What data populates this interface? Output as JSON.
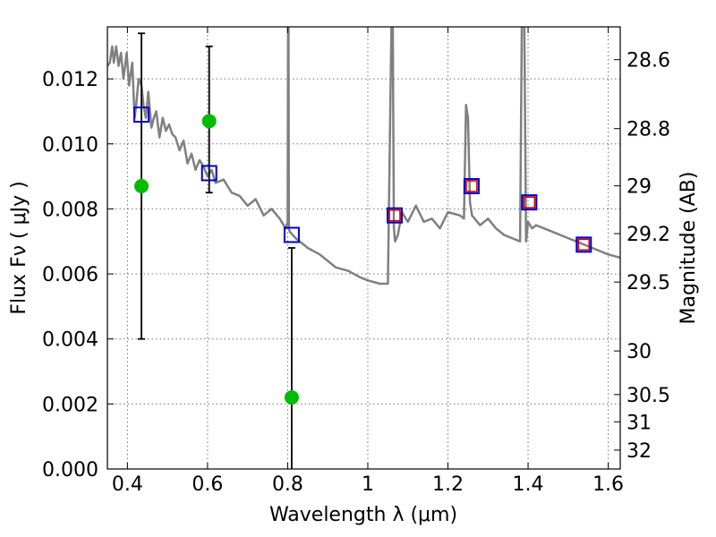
{
  "chart_data": {
    "type": "line",
    "xlabel": "Wavelength  λ (μm)",
    "ylabel": "Flux  Fν  ( μJy )",
    "right_ylabel": "Magnitude (AB)",
    "xlim": [
      0.35,
      1.63
    ],
    "ylim": [
      0.0,
      0.0136
    ],
    "grid": true,
    "x_ticks": [
      0.4,
      0.6,
      0.8,
      1.0,
      1.2,
      1.4,
      1.6
    ],
    "x_tick_labels": [
      "0.4",
      "0.6",
      "0.8",
      "1",
      "1.2",
      "1.4",
      "1.6"
    ],
    "y_ticks": [
      0.0,
      0.002,
      0.004,
      0.006,
      0.008,
      0.01,
      0.012
    ],
    "y_tick_labels": [
      "0.000",
      "0.002",
      "0.004",
      "0.006",
      "0.008",
      "0.010",
      "0.012"
    ],
    "right_ticks": [
      {
        "flux": 0.01259,
        "label": "28.6"
      },
      {
        "flux": 0.01047,
        "label": "28.8"
      },
      {
        "flux": 0.00871,
        "label": "29"
      },
      {
        "flux": 0.00724,
        "label": "29.2"
      },
      {
        "flux": 0.00575,
        "label": "29.5"
      },
      {
        "flux": 0.00363,
        "label": "30"
      },
      {
        "flux": 0.00229,
        "label": "30.5"
      },
      {
        "flux": 0.00145,
        "label": "31"
      },
      {
        "flux": 0.00058,
        "label": "32"
      }
    ],
    "series": [
      {
        "kind": "model_spectrum",
        "color": "#808080",
        "x": [
          0.35,
          0.356,
          0.362,
          0.366,
          0.372,
          0.378,
          0.384,
          0.39,
          0.398,
          0.404,
          0.412,
          0.418,
          0.422,
          0.428,
          0.435,
          0.44,
          0.446,
          0.452,
          0.46,
          0.466,
          0.472,
          0.48,
          0.488,
          0.496,
          0.504,
          0.512,
          0.52,
          0.53,
          0.54,
          0.55,
          0.56,
          0.57,
          0.58,
          0.59,
          0.6,
          0.61,
          0.62,
          0.64,
          0.66,
          0.68,
          0.7,
          0.72,
          0.74,
          0.76,
          0.78,
          0.795,
          0.8,
          0.801,
          0.802,
          0.803,
          0.805,
          0.82,
          0.85,
          0.88,
          0.9,
          0.92,
          0.95,
          0.98,
          1.0,
          1.03,
          1.05,
          1.06,
          1.062,
          1.065,
          1.068,
          1.075,
          1.085,
          1.1,
          1.12,
          1.14,
          1.16,
          1.18,
          1.2,
          1.23,
          1.24,
          1.245,
          1.25,
          1.255,
          1.26,
          1.28,
          1.3,
          1.32,
          1.34,
          1.36,
          1.38,
          1.385,
          1.39,
          1.395,
          1.4,
          1.41,
          1.42,
          1.44,
          1.46,
          1.48,
          1.5,
          1.52,
          1.54,
          1.56,
          1.58,
          1.6,
          1.63
        ],
        "y": [
          0.0124,
          0.0125,
          0.013,
          0.0125,
          0.013,
          0.0124,
          0.0128,
          0.012,
          0.0128,
          0.0118,
          0.0125,
          0.0108,
          0.0112,
          0.012,
          0.0118,
          0.0112,
          0.0108,
          0.0116,
          0.0105,
          0.0108,
          0.011,
          0.0102,
          0.0108,
          0.0104,
          0.0106,
          0.0103,
          0.0102,
          0.0098,
          0.0101,
          0.0094,
          0.0097,
          0.0092,
          0.0095,
          0.0093,
          0.009,
          0.0092,
          0.0088,
          0.0089,
          0.0085,
          0.0084,
          0.0081,
          0.0083,
          0.0078,
          0.008,
          0.0077,
          0.0074,
          0.0076,
          0.0145,
          0.0145,
          0.0074,
          0.0073,
          0.0071,
          0.0068,
          0.0066,
          0.0064,
          0.0062,
          0.0061,
          0.0059,
          0.0058,
          0.0057,
          0.0057,
          0.0145,
          0.0145,
          0.0074,
          0.007,
          0.0072,
          0.0079,
          0.0076,
          0.0081,
          0.0076,
          0.0077,
          0.0074,
          0.0079,
          0.0078,
          0.0077,
          0.0112,
          0.0108,
          0.0082,
          0.0078,
          0.0075,
          0.0077,
          0.0074,
          0.0072,
          0.0071,
          0.007,
          0.0145,
          0.0145,
          0.007,
          0.0076,
          0.0074,
          0.0075,
          0.0074,
          0.0073,
          0.0072,
          0.0071,
          0.007,
          0.0069,
          0.0068,
          0.0067,
          0.0066,
          0.0065
        ]
      },
      {
        "kind": "model_photometry",
        "marker": "open_square",
        "color": "#0000cc",
        "x": [
          0.435,
          0.604,
          0.81,
          1.067,
          1.259,
          1.403,
          1.539
        ],
        "y": [
          0.0109,
          0.0091,
          0.0072,
          0.0078,
          0.0087,
          0.0082,
          0.0069
        ]
      },
      {
        "kind": "observed_photometry_nir",
        "marker": "open_square",
        "color": "#cc0000",
        "x": [
          1.067,
          1.259,
          1.403,
          1.539
        ],
        "y": [
          0.0078,
          0.0087,
          0.0082,
          0.0069
        ]
      },
      {
        "kind": "observed_photometry_optical",
        "marker": "filled_circle",
        "color": "#00bb00",
        "x": [
          0.435,
          0.604,
          0.81
        ],
        "y": [
          0.0087,
          0.0107,
          0.0022
        ],
        "yerr_low": [
          0.0047,
          0.0022,
          0.0022
        ],
        "yerr_high": [
          0.0047,
          0.0023,
          0.0046
        ]
      }
    ]
  }
}
